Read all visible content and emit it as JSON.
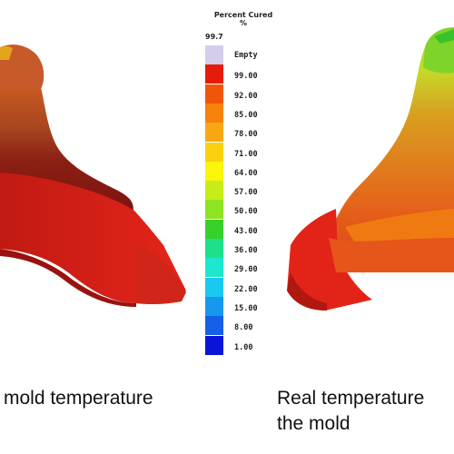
{
  "legend": {
    "title": "Percent Cured",
    "unit": "%",
    "max_value": "99.7",
    "levels": [
      {
        "label": "Empty",
        "color": "#d6cdea"
      },
      {
        "label": "99.00",
        "color": "#e51c0c"
      },
      {
        "label": "92.00",
        "color": "#f0560a"
      },
      {
        "label": "85.00",
        "color": "#f5830c"
      },
      {
        "label": "78.00",
        "color": "#f8a714"
      },
      {
        "label": "71.00",
        "color": "#fbd00f"
      },
      {
        "label": "64.00",
        "color": "#fcf40a"
      },
      {
        "label": "57.00",
        "color": "#c6ee16"
      },
      {
        "label": "50.00",
        "color": "#8ee422"
      },
      {
        "label": "43.00",
        "color": "#38d12b"
      },
      {
        "label": "36.00",
        "color": "#1ee08c"
      },
      {
        "label": "29.00",
        "color": "#1de7cc"
      },
      {
        "label": "22.00",
        "color": "#1bc8f0"
      },
      {
        "label": "15.00",
        "color": "#1897ee"
      },
      {
        "label": "8.00",
        "color": "#1560e6"
      },
      {
        "label": "1.00",
        "color": "#0a14d8"
      }
    ]
  },
  "captions": {
    "left_line1": "mold temperature",
    "right_line1": "Real temperature",
    "right_line2": "the mold"
  }
}
